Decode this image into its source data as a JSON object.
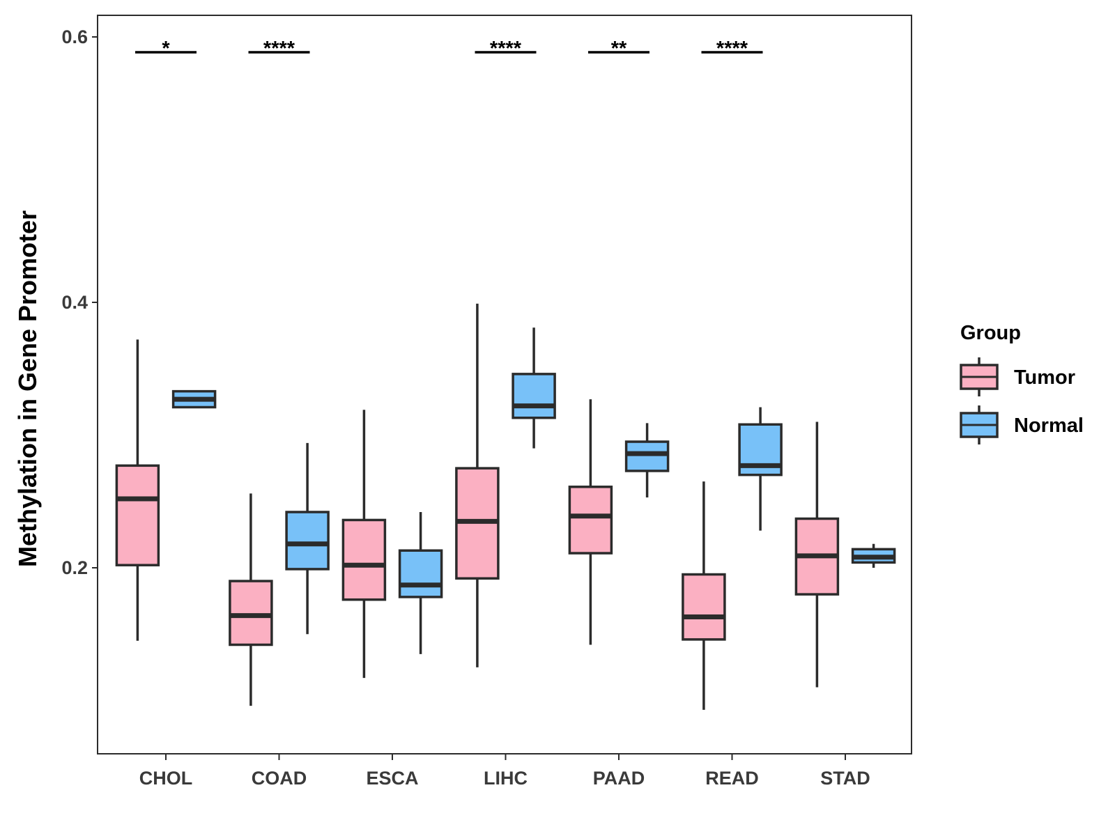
{
  "chart_data": {
    "type": "boxplot",
    "ylabel": "Methylation in Gene Promoter",
    "xlabel": "",
    "ylim": [
      0.06,
      0.62
    ],
    "yticks": [
      0.2,
      0.4,
      0.6
    ],
    "ytick_labels": [
      "0.2",
      "0.4",
      "0.6"
    ],
    "categories": [
      "CHOL",
      "COAD",
      "ESCA",
      "LIHC",
      "PAAD",
      "READ",
      "STAD"
    ],
    "legend": {
      "title": "Group",
      "position": "right",
      "entries": [
        {
          "label": "Tumor",
          "color": "#FBB0C2"
        },
        {
          "label": "Normal",
          "color": "#78C1F8"
        }
      ]
    },
    "series": [
      {
        "name": "Tumor",
        "color": "#FBB0C2",
        "boxes": [
          {
            "category": "CHOL",
            "min": 0.145,
            "q1": 0.202,
            "median": 0.252,
            "q3": 0.277,
            "max": 0.372
          },
          {
            "category": "COAD",
            "min": 0.096,
            "q1": 0.142,
            "median": 0.164,
            "q3": 0.19,
            "max": 0.256
          },
          {
            "category": "ESCA",
            "min": 0.117,
            "q1": 0.176,
            "median": 0.202,
            "q3": 0.236,
            "max": 0.319
          },
          {
            "category": "LIHC",
            "min": 0.125,
            "q1": 0.192,
            "median": 0.235,
            "q3": 0.275,
            "max": 0.399
          },
          {
            "category": "PAAD",
            "min": 0.142,
            "q1": 0.211,
            "median": 0.239,
            "q3": 0.261,
            "max": 0.327
          },
          {
            "category": "READ",
            "min": 0.093,
            "q1": 0.146,
            "median": 0.163,
            "q3": 0.195,
            "max": 0.265
          },
          {
            "category": "STAD",
            "min": 0.11,
            "q1": 0.18,
            "median": 0.209,
            "q3": 0.237,
            "max": 0.31
          }
        ]
      },
      {
        "name": "Normal",
        "color": "#78C1F8",
        "boxes": [
          {
            "category": "CHOL",
            "min": 0.321,
            "q1": 0.321,
            "median": 0.327,
            "q3": 0.333,
            "max": 0.333
          },
          {
            "category": "COAD",
            "min": 0.15,
            "q1": 0.199,
            "median": 0.218,
            "q3": 0.242,
            "max": 0.294
          },
          {
            "category": "ESCA",
            "min": 0.135,
            "q1": 0.178,
            "median": 0.187,
            "q3": 0.213,
            "max": 0.242
          },
          {
            "category": "LIHC",
            "min": 0.29,
            "q1": 0.313,
            "median": 0.322,
            "q3": 0.346,
            "max": 0.381
          },
          {
            "category": "PAAD",
            "min": 0.253,
            "q1": 0.273,
            "median": 0.286,
            "q3": 0.295,
            "max": 0.309
          },
          {
            "category": "READ",
            "min": 0.228,
            "q1": 0.27,
            "median": 0.277,
            "q3": 0.308,
            "max": 0.321
          },
          {
            "category": "STAD",
            "min": 0.2,
            "q1": 0.204,
            "median": 0.208,
            "q3": 0.214,
            "max": 0.218
          }
        ]
      }
    ],
    "significance": [
      {
        "category": "CHOL",
        "label": "*"
      },
      {
        "category": "COAD",
        "label": "****"
      },
      {
        "category": "LIHC",
        "label": "****"
      },
      {
        "category": "PAAD",
        "label": "**"
      },
      {
        "category": "READ",
        "label": "****"
      }
    ],
    "grid": false
  }
}
